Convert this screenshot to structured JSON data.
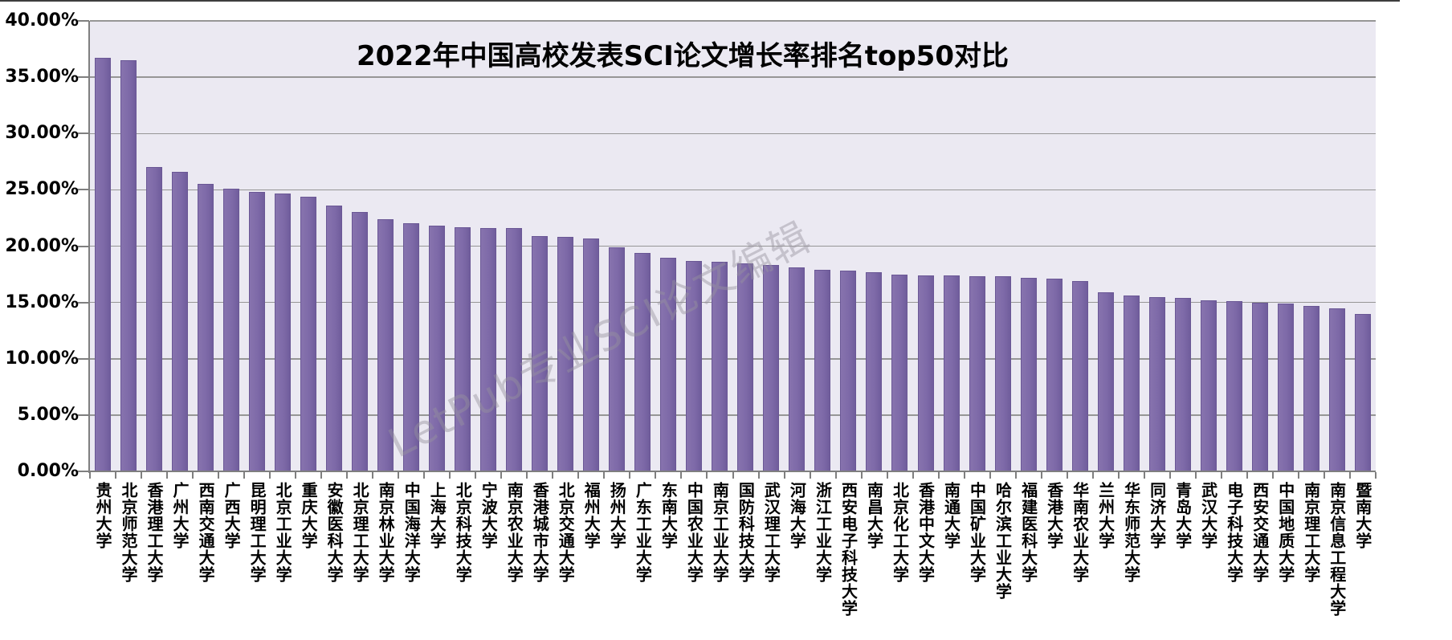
{
  "colors": {
    "bar_fill": "#7E6AA8",
    "bar_border": "#6A5795",
    "plot_background": "#EBE9F2",
    "gridline": "#969696",
    "axis": "#7F7F7F",
    "watermark_text_color": "#96929E",
    "title_text_color": "#000000",
    "page_background": "#FFFFFF"
  },
  "chart_data": {
    "type": "bar",
    "title": "2022年中国高校发表SCI论文增长率排名top50对比",
    "watermark": "LetPub专业SCI论文编辑",
    "xlabel": "",
    "ylabel": "",
    "unit": "%",
    "ylim": [
      0,
      40
    ],
    "grid": true,
    "legend": false,
    "y_ticks": [
      {
        "v": 0,
        "label": "0.00%"
      },
      {
        "v": 5,
        "label": "5.00%"
      },
      {
        "v": 10,
        "label": "10.00%"
      },
      {
        "v": 15,
        "label": "15.00%"
      },
      {
        "v": 20,
        "label": "20.00%"
      },
      {
        "v": 25,
        "label": "25.00%"
      },
      {
        "v": 30,
        "label": "30.00%"
      },
      {
        "v": 35,
        "label": "35.00%"
      },
      {
        "v": 40,
        "label": "40.00%"
      }
    ],
    "categories": [
      "贵州大学",
      "北京师范大学",
      "香港理工大学",
      "广州大学",
      "西南交通大学",
      "广西大学",
      "昆明理工大学",
      "北京工业大学",
      "重庆大学",
      "安徽医科大学",
      "北京理工大学",
      "南京林业大学",
      "中国海洋大学",
      "上海大学",
      "北京科技大学",
      "宁波大学",
      "南京农业大学",
      "香港城市大学",
      "北京交通大学",
      "福州大学",
      "扬州大学",
      "广东工业大学",
      "东南大学",
      "中国农业大学",
      "南京工业大学",
      "国防科技大学",
      "武汉理工大学",
      "河海大学",
      "浙江工业大学",
      "西安电子科技大学",
      "南昌大学",
      "北京化工大学",
      "香港中文大学",
      "南通大学",
      "中国矿业大学",
      "哈尔滨工业大学",
      "福建医科大学",
      "香港大学",
      "华南农业大学",
      "兰州大学",
      "华东师范大学",
      "同济大学",
      "青岛大学",
      "武汉大学",
      "电子科技大学",
      "西安交通大学",
      "中国地质大学",
      "南京理工大学",
      "南京信息工程大学",
      "暨南大学"
    ],
    "values": [
      36.7,
      36.5,
      27.0,
      26.6,
      25.5,
      25.1,
      24.8,
      24.7,
      24.4,
      23.6,
      23.0,
      22.4,
      22.0,
      21.8,
      21.7,
      21.6,
      21.6,
      20.9,
      20.8,
      20.7,
      19.9,
      19.4,
      19.0,
      18.7,
      18.6,
      18.5,
      18.3,
      18.1,
      17.9,
      17.8,
      17.7,
      17.5,
      17.4,
      17.4,
      17.3,
      17.3,
      17.2,
      17.1,
      16.9,
      15.9,
      15.6,
      15.5,
      15.4,
      15.2,
      15.1,
      15.0,
      14.9,
      14.7,
      14.5,
      14.0
    ]
  }
}
